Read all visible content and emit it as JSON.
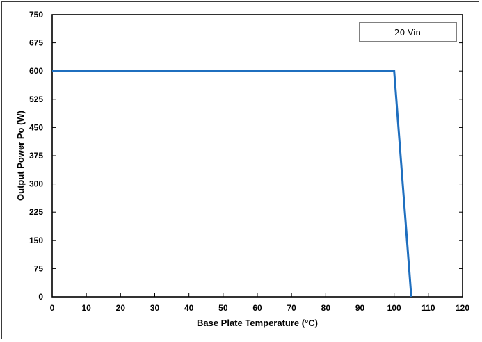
{
  "chart_data": {
    "type": "line",
    "title": "",
    "xlabel": "Base Plate Temperature (°C)",
    "ylabel": "Output Power Po (W)",
    "xlim": [
      0,
      120
    ],
    "ylim": [
      0,
      750
    ],
    "xticks": [
      0,
      10,
      20,
      30,
      40,
      50,
      60,
      70,
      80,
      90,
      100,
      110,
      120
    ],
    "yticks": [
      0,
      75,
      150,
      225,
      300,
      375,
      450,
      525,
      600,
      675,
      750
    ],
    "grid": false,
    "legend_position": "top-right",
    "series": [
      {
        "name": "20 Vin",
        "color": "#1f6fbf",
        "x": [
          0,
          100,
          105
        ],
        "y": [
          600,
          600,
          0
        ]
      }
    ]
  }
}
